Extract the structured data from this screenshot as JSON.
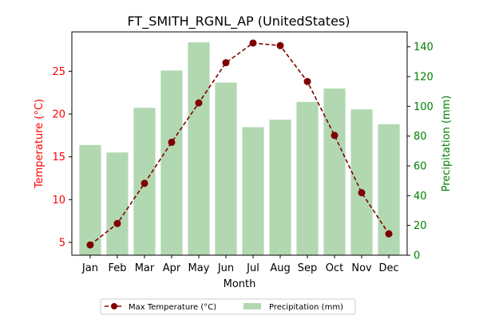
{
  "chart_data": {
    "type": "bar+line",
    "title": "FT_SMITH_RGNL_AP (UnitedStates)",
    "xlabel": "Month",
    "ylabel_left": "Temperature (°C)",
    "ylabel_right": "Precipitation (mm)",
    "categories": [
      "Jan",
      "Feb",
      "Mar",
      "Apr",
      "May",
      "Jun",
      "Jul",
      "Aug",
      "Sep",
      "Oct",
      "Nov",
      "Dec"
    ],
    "series": [
      {
        "name": "Max Temperature (°C)",
        "type": "line",
        "axis": "left",
        "color": "#800000",
        "values": [
          4.7,
          7.2,
          11.9,
          16.7,
          21.3,
          26.0,
          28.3,
          28.0,
          23.8,
          17.5,
          10.8,
          6.0
        ]
      },
      {
        "name": "Precipitation (mm)",
        "type": "bar",
        "axis": "right",
        "color": "#b2d8b2",
        "values": [
          74,
          69,
          99,
          124,
          143,
          116,
          86,
          91,
          103,
          112,
          98,
          88
        ]
      }
    ],
    "ylim_left": [
      3.5,
      29.6
    ],
    "yticks_left": [
      5,
      10,
      15,
      20,
      25
    ],
    "ylim_right": [
      0,
      150
    ],
    "yticks_right": [
      0,
      20,
      40,
      60,
      80,
      100,
      120,
      140
    ],
    "left_axis_color": "#ff0000",
    "right_axis_color": "#008000",
    "grid": false,
    "legend_position": "bottom-center"
  }
}
